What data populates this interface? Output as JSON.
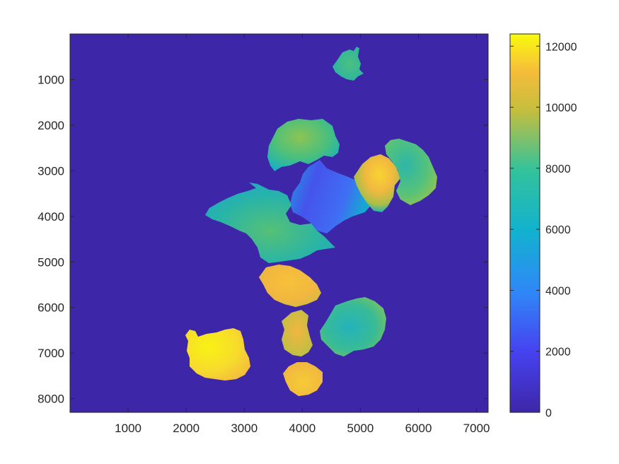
{
  "chart_data": {
    "type": "heatmap",
    "title": "",
    "xlabel": "",
    "ylabel": "",
    "xlim": [
      0,
      7200
    ],
    "ylim": [
      8300,
      0
    ],
    "y_axis_reversed": true,
    "x_ticks": [
      1000,
      2000,
      3000,
      4000,
      5000,
      6000,
      7000
    ],
    "x_tick_labels": [
      "1000",
      "2000",
      "3000",
      "4000",
      "5000",
      "6000",
      "7000"
    ],
    "y_ticks": [
      1000,
      2000,
      3000,
      4000,
      5000,
      6000,
      7000,
      8000
    ],
    "y_tick_labels": [
      "1000",
      "2000",
      "3000",
      "4000",
      "5000",
      "6000",
      "7000",
      "8000"
    ],
    "colormap": "parula",
    "background_value": 0,
    "color_limits": [
      0,
      12400
    ],
    "colorbar": {
      "position": "right",
      "ticks": [
        0,
        2000,
        4000,
        6000,
        8000,
        10000,
        12000
      ],
      "tick_labels": [
        "0",
        "2000",
        "4000",
        "6000",
        "8000",
        "10000",
        "12000"
      ]
    },
    "grid": false,
    "regions": [
      {
        "name": "top-blob",
        "x": [
          4550,
          5050
        ],
        "y": [
          450,
          1000
        ],
        "approx_value": 7200
      },
      {
        "name": "upper-blob",
        "x": [
          3400,
          4600
        ],
        "y": [
          1800,
          2900
        ],
        "approx_value": 7800
      },
      {
        "name": "central-blue",
        "x": [
          4000,
          5000
        ],
        "y": [
          2900,
          4100
        ],
        "approx_value": 1800
      },
      {
        "name": "right-gradient",
        "x": [
          4900,
          5500
        ],
        "y": [
          2700,
          3900
        ],
        "approx_value": 10500
      },
      {
        "name": "right-blob",
        "x": [
          5400,
          6300
        ],
        "y": [
          2300,
          3800
        ],
        "approx_value": 7000
      },
      {
        "name": "left-network",
        "x": [
          2300,
          4500
        ],
        "y": [
          3300,
          5000
        ],
        "approx_value": 6900
      },
      {
        "name": "mid-yellow",
        "x": [
          3300,
          4300
        ],
        "y": [
          5100,
          6000
        ],
        "approx_value": 10500
      },
      {
        "name": "right-lower",
        "x": [
          4300,
          5400
        ],
        "y": [
          5900,
          7100
        ],
        "approx_value": 7200
      },
      {
        "name": "narrow-orange",
        "x": [
          3500,
          4100
        ],
        "y": [
          6000,
          7100
        ],
        "approx_value": 10300
      },
      {
        "name": "left-yellow",
        "x": [
          2000,
          3100
        ],
        "y": [
          6500,
          7600
        ],
        "approx_value": 11600
      },
      {
        "name": "bottom-orange",
        "x": [
          3600,
          4300
        ],
        "y": [
          7200,
          8000
        ],
        "approx_value": 10600
      }
    ]
  }
}
